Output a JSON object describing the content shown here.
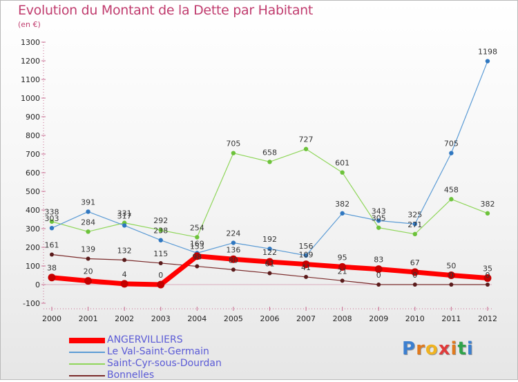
{
  "header": {
    "title": "Evolution du Montant de la Dette par Habitant",
    "unit": "(en €)"
  },
  "brand": {
    "logo_letters": [
      "P",
      "r",
      "o",
      "x",
      "i",
      "t",
      "i"
    ],
    "logo_colors": [
      "#3b7fd0",
      "#e07a1e",
      "#f0b320",
      "#e03b3b",
      "#e07a1e",
      "#2fa34a",
      "#3b7fd0"
    ]
  },
  "chart_data": {
    "type": "line",
    "title": "Evolution du Montant de la Dette par Habitant",
    "subtitle": "(en €)",
    "xlabel": "",
    "ylabel": "",
    "x": [
      "2000",
      "2001",
      "2002",
      "2003",
      "2004",
      "2005",
      "2006",
      "2007",
      "2008",
      "2009",
      "2010",
      "2011",
      "2012"
    ],
    "ylim": [
      -100,
      1300
    ],
    "yticks": [
      -100,
      0,
      100,
      200,
      300,
      400,
      500,
      600,
      700,
      800,
      900,
      1000,
      1100,
      1200,
      1300
    ],
    "grid": false,
    "legend_position": "bottom-left",
    "series": [
      {
        "name": "Bonnelles",
        "color": "#7a2a2a",
        "values": [
          161,
          139,
          132,
          115,
          98,
          80,
          61,
          41,
          21,
          0,
          0,
          0,
          0
        ]
      },
      {
        "name": "Saint-Cyr-sous-Dourdan",
        "color": "#8fd65a",
        "values": [
          338,
          284,
          331,
          292,
          254,
          705,
          658,
          727,
          601,
          305,
          271,
          458,
          382
        ]
      },
      {
        "name": "Le Val-Saint-Germain",
        "color": "#5b9bd5",
        "values": [
          303,
          391,
          317,
          238,
          169,
          224,
          192,
          156,
          382,
          343,
          325,
          705,
          1198
        ]
      },
      {
        "name": "ANGERVILLIERS",
        "color": "#ff0000",
        "values": [
          38,
          20,
          4,
          0,
          153,
          136,
          122,
          109,
          95,
          83,
          67,
          50,
          35
        ]
      }
    ],
    "legend_order": [
      "ANGERVILLIERS",
      "Le Val-Saint-Germain",
      "Saint-Cyr-sous-Dourdan",
      "Bonnelles"
    ]
  }
}
